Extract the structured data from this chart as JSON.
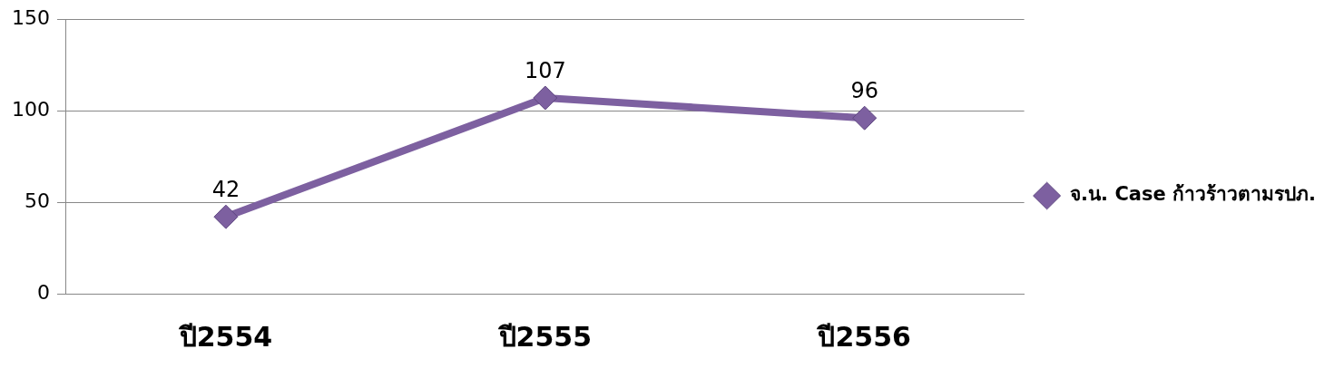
{
  "chart_data": {
    "type": "line",
    "categories": [
      "ปี2554",
      "ปี2555",
      "ปี2556"
    ],
    "series": [
      {
        "name": "จ.น. Case ก้าวร้าวตามรปภ.",
        "color": "#7d60a0",
        "values": [
          42,
          107,
          96
        ]
      }
    ],
    "ylim": [
      0,
      150
    ],
    "yticks": [
      0,
      50,
      100,
      150
    ],
    "grid": "y",
    "legend": "right",
    "marker": "diamond",
    "line_style": "solid",
    "data_labels": true
  }
}
